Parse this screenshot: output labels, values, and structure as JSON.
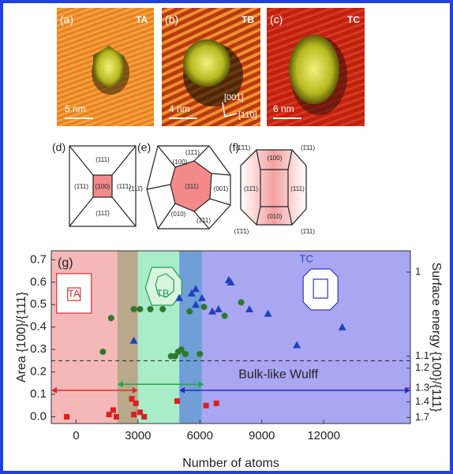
{
  "panels": [
    {
      "label": "(a)",
      "tag": "TA",
      "scale": "5 nm"
    },
    {
      "label": "(b)",
      "tag": "TB",
      "scale": "4 nm",
      "directions": [
        "[001]",
        "[11̄0]"
      ]
    },
    {
      "label": "(c)",
      "tag": "TC",
      "scale": "6 nm"
    }
  ],
  "models": [
    {
      "label": "(d)",
      "facets": [
        "(111)",
        "(1̄11)",
        "(100)",
        "(11̄1)",
        "(111̄)"
      ]
    },
    {
      "label": "(e)",
      "facets": [
        "(11̄1)",
        "(100)",
        "(111)",
        "(001)",
        "(111̄)",
        "(010)",
        "(1̄11)"
      ]
    },
    {
      "label": "(f)",
      "facets": [
        "(1̄1̄1)",
        "(100)",
        "(1̄11)",
        "(11̄1)",
        "(111)",
        "(010)",
        "(1̄1̄1)",
        "(1̄11)"
      ]
    }
  ],
  "chart_data": {
    "type": "scatter",
    "label": "(g)",
    "xlabel": "Number of atoms",
    "ylabel": "Area {100}/{111}",
    "y2label": "Surface energy {100}/{111}",
    "xlim": [
      -1200,
      16200
    ],
    "xticks": [
      0,
      3000,
      6000,
      9000,
      12000
    ],
    "ylim": [
      -0.03,
      0.74
    ],
    "yticks": [
      {
        "value": 0,
        "label": "0.0"
      },
      0.1,
      0.2,
      0.3,
      0.4,
      0.5,
      0.6,
      0.7
    ],
    "y2ticks": [
      1,
      1.1,
      1.2,
      1.3,
      1.4,
      1.7
    ],
    "y2tick_area": [
      0.645,
      0.27,
      0.217,
      0.128,
      0.066,
      -0.003
    ],
    "regions": [
      {
        "xrange": [
          -1200,
          2000
        ],
        "color": "#f5b8b8"
      },
      {
        "xrange": [
          2000,
          3000
        ],
        "color": "#b7a98a"
      },
      {
        "xrange": [
          3000,
          5000
        ],
        "color": "#a8ecc8"
      },
      {
        "xrange": [
          5000,
          6100
        ],
        "color": "#6f9fd6"
      },
      {
        "xrange": [
          6100,
          16200
        ],
        "color": "#a9a6f2"
      }
    ],
    "insets": [
      {
        "label": "TA",
        "color": "#d93030",
        "x": -100
      },
      {
        "label": "TB",
        "color": "#20a050",
        "x": 4200
      },
      {
        "label": "TC",
        "color": "#2a3fc0",
        "x": 12000
      }
    ],
    "arrows": [
      {
        "xrange": [
          -1200,
          3000
        ],
        "y": 0.118,
        "color": "#e02828"
      },
      {
        "xrange": [
          2000,
          6200
        ],
        "y": 0.145,
        "color": "#20a848"
      },
      {
        "xrange": [
          5000,
          16200
        ],
        "y": 0.118,
        "color": "#2828c8"
      }
    ],
    "reference": {
      "y": 0.25,
      "label": "Bulk-like Wulff"
    },
    "series": [
      {
        "marker": "square",
        "color": "#d82020",
        "x": [
          -450,
          1600,
          1800,
          1950,
          2700,
          2900,
          2800,
          3100,
          3300,
          4900,
          6300,
          6800
        ],
        "values": [
          0.0,
          0.01,
          0.03,
          0.0,
          0.08,
          0.06,
          0.01,
          0.02,
          0.0,
          0.07,
          0.05,
          0.06
        ]
      },
      {
        "marker": "circle",
        "color": "#2c7a2c",
        "x": [
          1300,
          1700,
          2800,
          3100,
          3600,
          4200,
          4600,
          4800,
          4950,
          5100,
          5300,
          5500,
          6000,
          6200,
          7200,
          8000
        ],
        "values": [
          0.29,
          0.44,
          0.48,
          0.48,
          0.48,
          0.48,
          0.27,
          0.27,
          0.29,
          0.3,
          0.28,
          0.47,
          0.28,
          0.49,
          0.45,
          0.51
        ]
      },
      {
        "marker": "triangle",
        "color": "#2040c0",
        "x": [
          2800,
          5000,
          5600,
          5800,
          5800,
          6100,
          6600,
          6900,
          7400,
          7500,
          8400,
          9300,
          10700,
          12900
        ],
        "values": [
          0.34,
          0.53,
          0.55,
          0.57,
          0.5,
          0.53,
          0.47,
          0.48,
          0.61,
          0.6,
          0.48,
          0.46,
          0.32,
          0.4
        ]
      }
    ]
  }
}
